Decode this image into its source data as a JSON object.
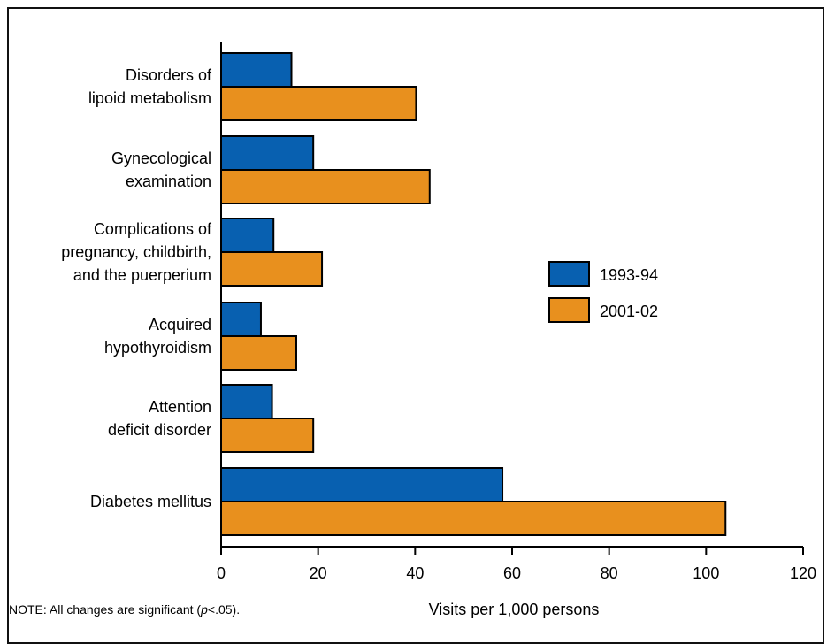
{
  "chart_data": {
    "type": "bar",
    "orientation": "horizontal",
    "categories": [
      [
        "Disorders of",
        "lipoid metabolism"
      ],
      [
        "Gynecological",
        "examination"
      ],
      [
        "Complications of",
        "pregnancy, childbirth,",
        "and the puerperium"
      ],
      [
        "Acquired",
        "hypothyroidism"
      ],
      [
        "Attention",
        "deficit disorder"
      ],
      [
        "Diabetes mellitus"
      ]
    ],
    "series": [
      {
        "name": "1993-94",
        "color": "#0860b0",
        "values": [
          14.5,
          19,
          10.8,
          8.2,
          10.5,
          58
        ]
      },
      {
        "name": "2001-02",
        "color": "#e8901e",
        "values": [
          40.2,
          43,
          20.8,
          15.5,
          19,
          104
        ]
      }
    ],
    "xlabel": "Visits per 1,000 persons",
    "xlim": [
      0,
      120
    ],
    "xticks": [
      "0",
      "20",
      "40",
      "60",
      "80",
      "100",
      "120"
    ],
    "legend_position": "right"
  },
  "note": {
    "prefix": "NOTE: All changes are significant (",
    "p": "p",
    "suffix": "<.05)."
  }
}
